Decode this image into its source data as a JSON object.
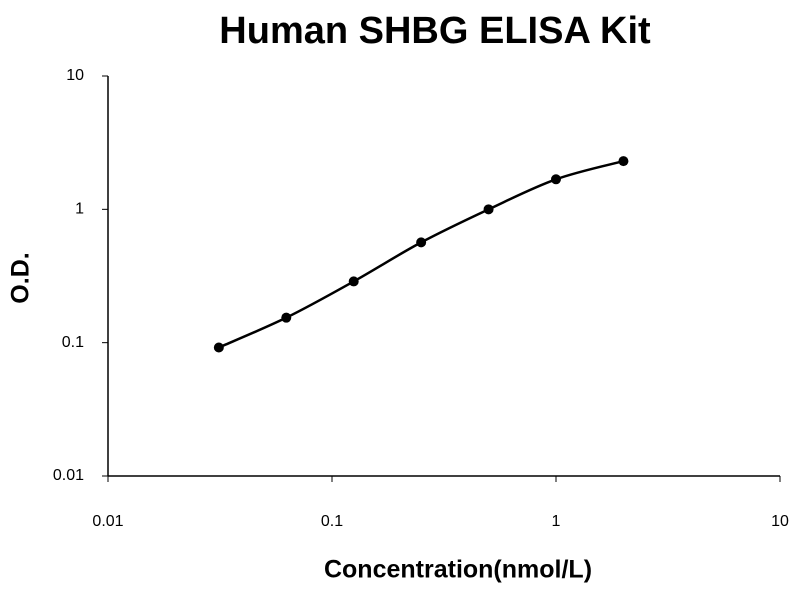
{
  "chart_data": {
    "type": "scatter",
    "title": "Human SHBG ELISA Kit",
    "x_label": "Concentration(nmol/L)",
    "y_label": "O.D.",
    "x": [
      0.03125,
      0.0625,
      0.125,
      0.25,
      0.5,
      1,
      2
    ],
    "series": [
      {
        "color": "#000000",
        "values": [
          0.092,
          0.154,
          0.288,
          0.565,
          1.0,
          1.68,
          2.3
        ]
      }
    ],
    "x_log": true,
    "y_log": true,
    "smooth_line": true,
    "grid": false,
    "xlim": [
      0.01,
      10
    ],
    "xticks": [
      0.01,
      0.1,
      1,
      10
    ],
    "ylim": [
      0.01,
      10
    ],
    "yticks": [
      0.01,
      0.1,
      1,
      10
    ]
  }
}
